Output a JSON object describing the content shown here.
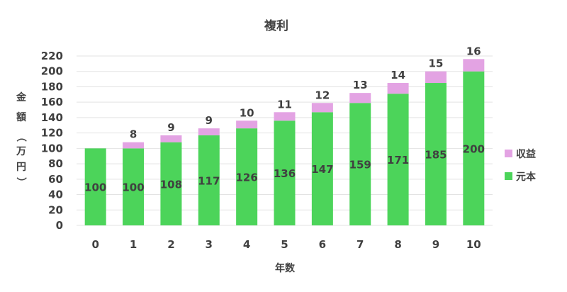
{
  "chart_data": {
    "type": "bar",
    "stacked": true,
    "title": "複利",
    "xlabel": "年数",
    "ylabel": "金額（万円）",
    "ylabel_chars": [
      "金",
      "額",
      "（",
      "万",
      "円",
      "）"
    ],
    "categories": [
      "0",
      "1",
      "2",
      "3",
      "4",
      "5",
      "6",
      "7",
      "8",
      "9",
      "10"
    ],
    "series": [
      {
        "name": "元本",
        "color": "#4cd45a",
        "values": [
          100,
          100,
          108,
          117,
          126,
          136,
          147,
          159,
          171,
          185,
          200
        ]
      },
      {
        "name": "収益",
        "color": "#e3a3e3",
        "values": [
          null,
          8,
          9,
          9,
          10,
          11,
          12,
          13,
          14,
          15,
          16
        ]
      }
    ],
    "ylim": [
      0,
      220
    ],
    "yticks": [
      0,
      20,
      40,
      60,
      80,
      100,
      120,
      140,
      160,
      180,
      200,
      220
    ],
    "grid": true,
    "legend_position": "right"
  }
}
